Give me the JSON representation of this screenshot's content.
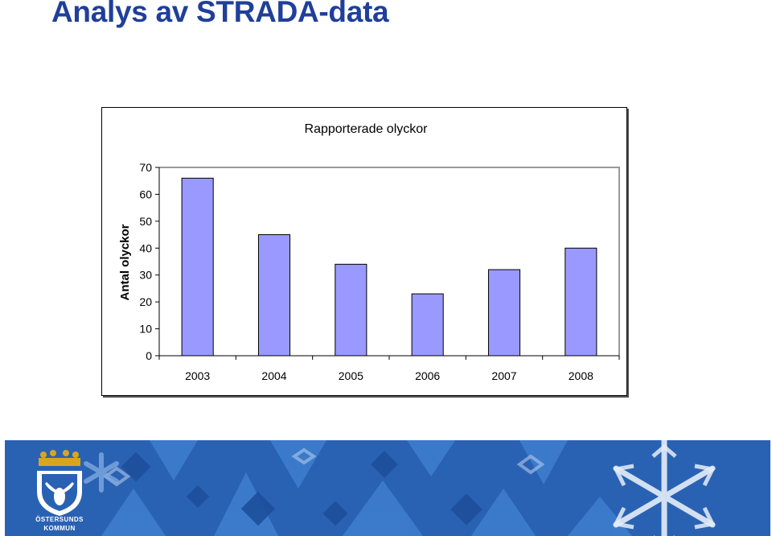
{
  "page": {
    "title": "Analys av STRADA-data"
  },
  "chart_data": {
    "type": "bar",
    "title": "Rapporterade olyckor",
    "ylabel": "Antal olyckor",
    "xlabel": "",
    "categories": [
      "2003",
      "2004",
      "2005",
      "2006",
      "2007",
      "2008"
    ],
    "values": [
      66,
      45,
      34,
      23,
      32,
      40
    ],
    "ylim": [
      0,
      70
    ],
    "yticks": [
      0,
      10,
      20,
      30,
      40,
      50,
      60,
      70
    ],
    "grid": false,
    "legend": "none",
    "bar_color": "#9999ff"
  },
  "footer": {
    "logo_line1": "ÖSTERSUNDS",
    "logo_line2": "KOMMUN",
    "logo_icon": "moose-crest-icon",
    "pattern_icon": "snowflake-pattern"
  }
}
